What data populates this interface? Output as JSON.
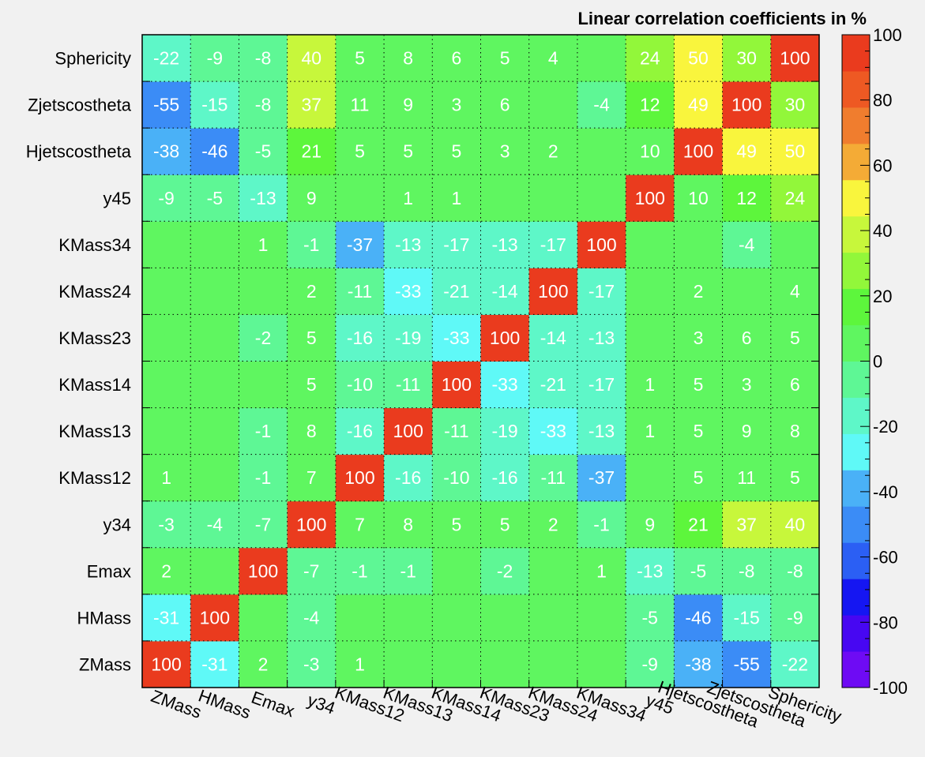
{
  "chart_data": {
    "type": "heatmap",
    "title": "Linear correlation coefficients in %",
    "variables": [
      "ZMass",
      "HMass",
      "Emax",
      "y34",
      "KMass12",
      "KMass13",
      "KMass14",
      "KMass23",
      "KMass24",
      "KMass34",
      "y45",
      "Hjetscostheta",
      "Zjetscostheta",
      "Sphericity"
    ],
    "matrix": [
      [
        100,
        -31,
        2,
        -3,
        1,
        0,
        0,
        0,
        0,
        0,
        -9,
        -38,
        -55,
        -22
      ],
      [
        -31,
        100,
        0,
        -4,
        0,
        0,
        0,
        0,
        0,
        0,
        -5,
        -46,
        -15,
        -9
      ],
      [
        2,
        0,
        100,
        -7,
        -1,
        -1,
        0,
        -2,
        0,
        1,
        -13,
        -5,
        -8,
        -8
      ],
      [
        -3,
        -4,
        -7,
        100,
        7,
        8,
        5,
        5,
        2,
        -1,
        9,
        21,
        37,
        40
      ],
      [
        1,
        0,
        -1,
        7,
        100,
        -16,
        -10,
        -16,
        -11,
        -37,
        0,
        5,
        11,
        5
      ],
      [
        0,
        0,
        -1,
        8,
        -16,
        100,
        -11,
        -19,
        -33,
        -13,
        1,
        5,
        9,
        8
      ],
      [
        0,
        0,
        0,
        5,
        -10,
        -11,
        100,
        -33,
        -21,
        -17,
        1,
        5,
        3,
        6
      ],
      [
        0,
        0,
        -2,
        5,
        -16,
        -19,
        -33,
        100,
        -14,
        -13,
        0,
        3,
        6,
        5
      ],
      [
        0,
        0,
        0,
        2,
        -11,
        -33,
        -21,
        -14,
        100,
        -17,
        0,
        2,
        0,
        4
      ],
      [
        0,
        0,
        1,
        -1,
        -37,
        -13,
        -17,
        -13,
        -17,
        100,
        0,
        0,
        -4,
        0
      ],
      [
        -9,
        -5,
        -13,
        9,
        0,
        1,
        1,
        0,
        0,
        0,
        100,
        10,
        12,
        24
      ],
      [
        -38,
        -46,
        -5,
        21,
        5,
        5,
        5,
        3,
        2,
        0,
        10,
        100,
        49,
        50
      ],
      [
        -55,
        -15,
        -8,
        37,
        11,
        9,
        3,
        6,
        0,
        -4,
        12,
        49,
        100,
        30
      ],
      [
        -22,
        -9,
        -8,
        40,
        5,
        8,
        6,
        5,
        4,
        0,
        24,
        50,
        30,
        100
      ]
    ],
    "scale": {
      "min": -100,
      "max": 100,
      "tick_labels": [
        "100",
        "80",
        "60",
        "40",
        "20",
        "0",
        "-20",
        "-40",
        "-60",
        "-80",
        "-100"
      ],
      "tick_values": [
        100,
        80,
        60,
        40,
        20,
        0,
        -20,
        -40,
        -60,
        -80,
        -100
      ],
      "colors": [
        "#6e0bf4",
        "#4707f2",
        "#1516f2",
        "#2b5ff4",
        "#3b8cf6",
        "#4ab1f7",
        "#5ff9f7",
        "#5ef7c8",
        "#5ef795",
        "#5ff660",
        "#5df63c",
        "#92f73a",
        "#c7f73b",
        "#f9f53d",
        "#f4ab36",
        "#f07d2e",
        "#ee5923",
        "#ea3b1e"
      ]
    },
    "grid": "dotted",
    "xlabel": "",
    "ylabel": ""
  }
}
